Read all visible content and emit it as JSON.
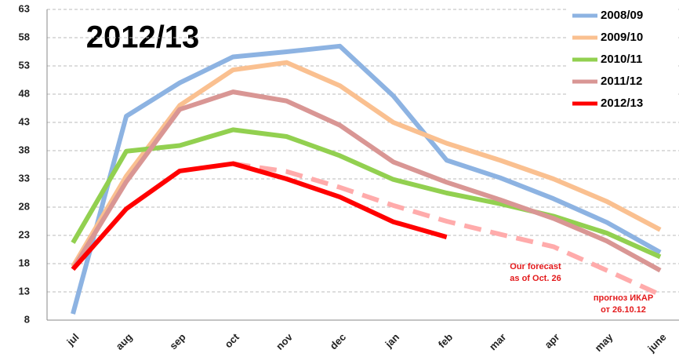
{
  "chart_data": {
    "type": "line",
    "title": "2012/13",
    "categories": [
      "jul",
      "aug",
      "sep",
      "oct",
      "nov",
      "dec",
      "jan",
      "feb",
      "mar",
      "apr",
      "may",
      "june"
    ],
    "series": [
      {
        "name": "2008/09",
        "color": "#8db3e2",
        "values": [
          9.1,
          44.1,
          50,
          54.6,
          55.5,
          56.5,
          47.7,
          36.3,
          33.2,
          29.5,
          25.3,
          20
        ]
      },
      {
        "name": "2009/10",
        "color": "#fac090",
        "values": [
          17.5,
          33.5,
          46,
          52.3,
          53.6,
          49.5,
          43,
          39.3,
          36.3,
          33,
          29,
          24
        ]
      },
      {
        "name": "2010/11",
        "color": "#92d050",
        "values": [
          21.7,
          37.9,
          38.9,
          41.7,
          40.5,
          37.1,
          32.9,
          30.5,
          28.6,
          26.4,
          23.4,
          19.2
        ]
      },
      {
        "name": "2011/12",
        "color": "#d99694",
        "values": [
          17,
          32.5,
          45.3,
          48.4,
          46.8,
          42.5,
          36,
          32.4,
          29.3,
          26,
          22,
          16.8
        ]
      },
      {
        "name": "2012/13",
        "color": "#ff0000",
        "values": [
          17,
          27.7,
          34.4,
          35.7,
          33,
          29.8,
          25.4,
          22.7,
          null,
          null,
          null,
          null
        ]
      },
      {
        "color": "#ffabab",
        "dashed": true,
        "values": [
          null,
          null,
          null,
          35.7,
          34.3,
          31.5,
          28.3,
          25.5,
          23.2,
          21,
          16.8,
          12.5
        ]
      }
    ],
    "annotations": [
      [
        "Our forecast",
        "as of Oct. 26"
      ],
      [
        "прогноз ИКАР",
        "от 26.10.12"
      ]
    ],
    "ylim": [
      8,
      63
    ],
    "yticks": [
      8,
      13,
      18,
      23,
      28,
      33,
      38,
      43,
      48,
      53,
      58,
      63
    ],
    "grid": true,
    "legend": "top-right"
  }
}
